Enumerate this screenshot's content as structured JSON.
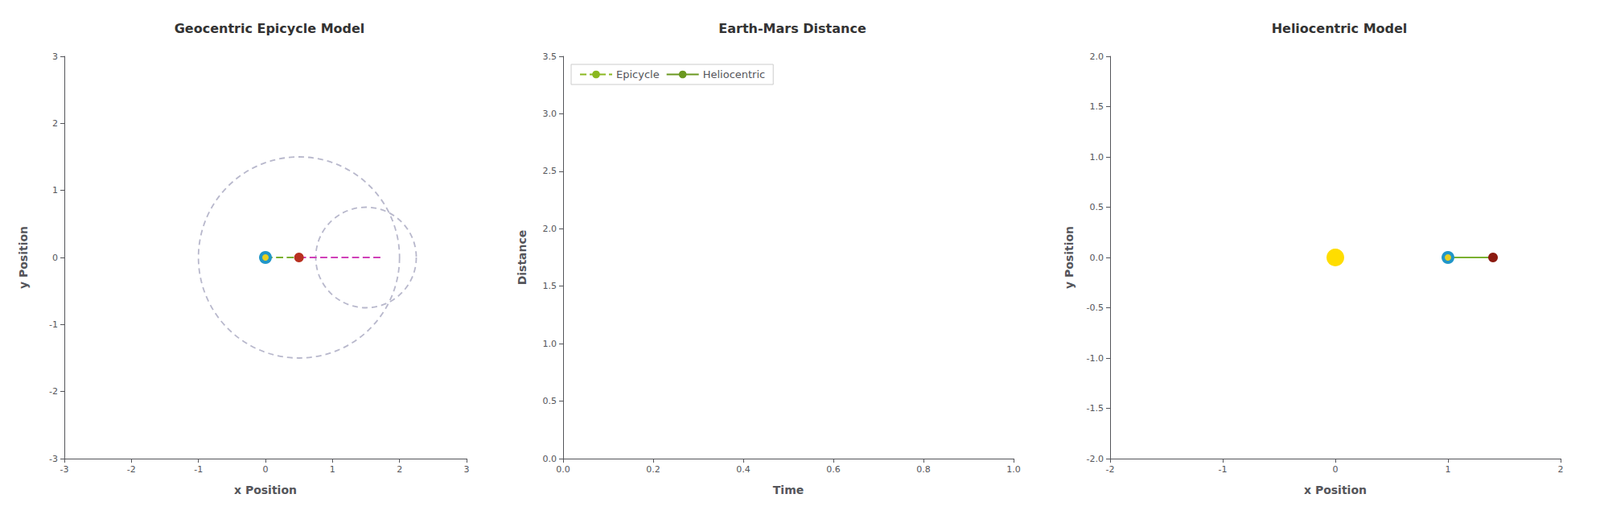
{
  "chart_data": [
    {
      "type": "scatter",
      "title": "Geocentric Epicycle Model",
      "x_label": "x Position",
      "y_label": "y Position",
      "xlim": [
        -3,
        3
      ],
      "ylim": [
        -3,
        3
      ],
      "xticks": [
        -3,
        -2,
        -1,
        0,
        1,
        2,
        3
      ],
      "yticks": [
        -3,
        -2,
        -1,
        0,
        1,
        2,
        3
      ],
      "grid": false,
      "series": [
        {
          "type": "circle",
          "center": [
            0.5,
            0
          ],
          "radius": 1.5,
          "color": "#b8b8cc",
          "line_style": "dashed"
        },
        {
          "type": "circle",
          "center": [
            1.5,
            0
          ],
          "radius": 0.75,
          "color": "#b8b8cc",
          "line_style": "dashed"
        },
        {
          "type": "line",
          "x": [
            0,
            0.5
          ],
          "values": [
            0,
            0
          ],
          "color": "#7ab030",
          "line_style": "dashed"
        },
        {
          "type": "line",
          "x": [
            0.5,
            1.75
          ],
          "values": [
            0,
            0
          ],
          "color": "#d040b8",
          "line_style": "dashed"
        },
        {
          "type": "scatter",
          "x": [
            0
          ],
          "values": [
            0
          ],
          "color": "#2196c8"
        },
        {
          "type": "scatter",
          "x": [
            0
          ],
          "values": [
            0
          ],
          "color": "#e8d020"
        },
        {
          "type": "scatter",
          "x": [
            0.5
          ],
          "values": [
            0
          ],
          "color": "#b83020"
        }
      ]
    },
    {
      "type": "line",
      "title": "Earth-Mars Distance",
      "x_label": "Time",
      "y_label": "Distance",
      "xlim": [
        0,
        1
      ],
      "ylim": [
        0.0,
        3.5
      ],
      "xticks": [
        {
          "value": 0,
          "label": "0.0"
        },
        0.2,
        0.4,
        0.6,
        0.8,
        {
          "value": 1,
          "label": "1.0"
        }
      ],
      "yticks": [
        {
          "value": 0,
          "label": "0.0"
        },
        0.5,
        {
          "value": 1,
          "label": "1.0"
        },
        1.5,
        {
          "value": 2,
          "label": "2.0"
        },
        2.5,
        {
          "value": 3,
          "label": "3.0"
        },
        3.5
      ],
      "grid": false,
      "legend": "upper left",
      "series": [
        {
          "name": "Epicycle",
          "color": "#8ab820",
          "line_style": "dashed",
          "x": [],
          "values": []
        },
        {
          "name": "Heliocentric",
          "color": "#6a9820",
          "line_style": "solid",
          "x": [],
          "values": []
        }
      ]
    },
    {
      "type": "scatter",
      "title": "Heliocentric Model",
      "x_label": "x Position",
      "y_label": "y Position",
      "xlim": [
        -2,
        2
      ],
      "ylim": [
        -2.0,
        2.0
      ],
      "xticks": [
        -2,
        -1,
        0,
        1,
        2
      ],
      "yticks": [
        {
          "value": -2,
          "label": "-2.0"
        },
        -1.5,
        {
          "value": -1,
          "label": "-1.0"
        },
        -0.5,
        {
          "value": 0,
          "label": "0.0"
        },
        0.5,
        {
          "value": 1,
          "label": "1.0"
        },
        1.5,
        {
          "value": 2,
          "label": "2.0"
        }
      ],
      "grid": false,
      "series": [
        {
          "type": "scatter",
          "x": [
            0
          ],
          "values": [
            0
          ],
          "color": "#ffdd00"
        },
        {
          "type": "line",
          "x": [
            1.0,
            1.4
          ],
          "values": [
            0,
            0
          ],
          "color": "#7ab030",
          "line_style": "solid"
        },
        {
          "type": "scatter",
          "x": [
            1.0
          ],
          "values": [
            0
          ],
          "color": "#2196c8"
        },
        {
          "type": "scatter",
          "x": [
            1.0
          ],
          "values": [
            0
          ],
          "color": "#e8d020"
        },
        {
          "type": "scatter",
          "x": [
            1.4
          ],
          "values": [
            0
          ],
          "color": "#8b1a10"
        }
      ]
    }
  ]
}
